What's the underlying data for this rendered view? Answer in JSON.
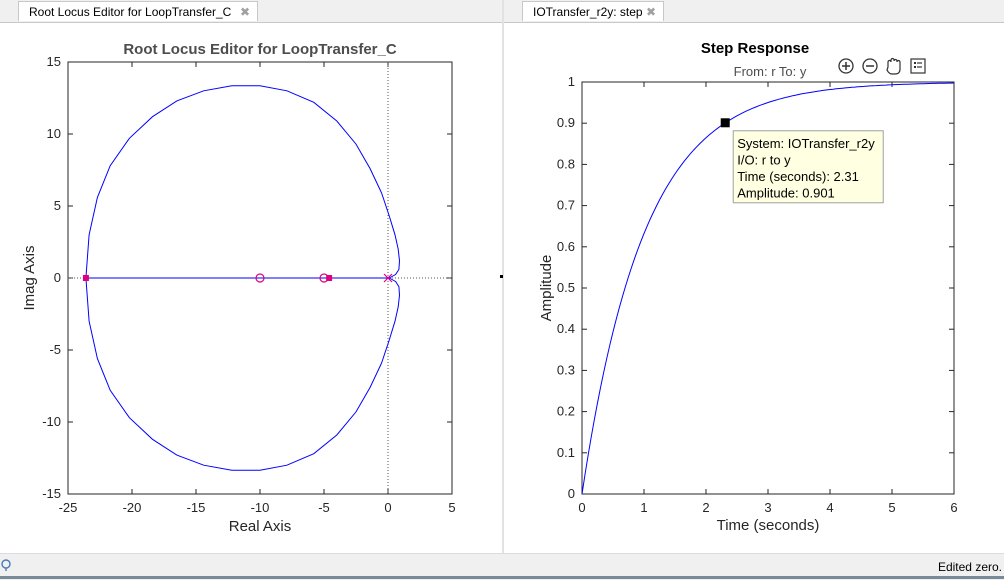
{
  "tabs": {
    "left": {
      "label": "Root Locus Editor for LoopTransfer_C",
      "close": "✖"
    },
    "right": {
      "label": "IOTransfer_r2y: step",
      "close": "✖"
    }
  },
  "status": {
    "text": "Edited zero."
  },
  "colors": {
    "locus": "#0000ff",
    "marker": "#e0007f",
    "datatip_bg": "#ffffe1",
    "axis_text": "#262626"
  },
  "toolbar_icons": [
    "zoom-in-icon",
    "zoom-out-icon",
    "pan-hand-icon",
    "legend-icon"
  ],
  "chart_data": [
    {
      "type": "line",
      "title": "Root Locus Editor for LoopTransfer_C",
      "xlabel": "Real Axis",
      "ylabel": "Imag Axis",
      "xlim": [
        -25,
        5
      ],
      "ylim": [
        -15,
        15
      ],
      "xticks": [
        -25,
        -20,
        -15,
        -10,
        -5,
        0,
        5
      ],
      "yticks": [
        -15,
        -10,
        -5,
        0,
        5,
        10,
        15
      ],
      "grid": false,
      "reference_lines": {
        "x": 0,
        "y": 0,
        "style": "dotted"
      },
      "series": [
        {
          "x": [
            -23.6,
            -23.35,
            -22.7,
            -21.7,
            -20.2,
            -18.4,
            -16.5,
            -14.4,
            -12.2,
            -10.0,
            -7.9,
            -5.8,
            -4.0,
            -2.5,
            -1.4,
            -0.5,
            0.1,
            0.55,
            0.8,
            0.9,
            0.85,
            0.6,
            0.1
          ],
          "y": [
            0,
            3.0,
            5.6,
            7.8,
            9.7,
            11.2,
            12.3,
            13.0,
            13.35,
            13.35,
            13.0,
            12.2,
            10.9,
            9.3,
            7.6,
            5.9,
            4.3,
            3.0,
            2.0,
            1.2,
            0.6,
            0.25,
            0
          ]
        },
        {
          "x": [
            -23.6,
            -23.35,
            -22.7,
            -21.7,
            -20.2,
            -18.4,
            -16.5,
            -14.4,
            -12.2,
            -10.0,
            -7.9,
            -5.8,
            -4.0,
            -2.5,
            -1.4,
            -0.5,
            0.1,
            0.55,
            0.8,
            0.9,
            0.85,
            0.6,
            0.1
          ],
          "y": [
            0,
            -3.0,
            -5.6,
            -7.8,
            -9.7,
            -11.2,
            -12.3,
            -13.0,
            -13.35,
            -13.35,
            -13.0,
            -12.2,
            -10.9,
            -9.3,
            -7.6,
            -5.9,
            -4.3,
            -3.0,
            -2.0,
            -1.2,
            -0.6,
            -0.25,
            0
          ]
        },
        {
          "x": [
            -23.6,
            0
          ],
          "y": [
            0,
            0
          ]
        }
      ],
      "poles": [
        {
          "x": 0,
          "y": 0
        }
      ],
      "zeros": [
        {
          "x": -10,
          "y": 0
        },
        {
          "x": -5,
          "y": 0
        }
      ],
      "closed_loop_poles": [
        {
          "x": -23.6,
          "y": 0
        },
        {
          "x": -4.6,
          "y": 0
        }
      ]
    },
    {
      "type": "line",
      "title": "Step Response",
      "subtitle": "From: r  To: y",
      "xlabel": "Time (seconds)",
      "ylabel": "Amplitude",
      "xlim": [
        0,
        6
      ],
      "ylim": [
        0,
        1
      ],
      "xticks": [
        0,
        1,
        2,
        3,
        4,
        5,
        6
      ],
      "yticks": [
        0,
        0.1,
        0.2,
        0.3,
        0.4,
        0.5,
        0.6,
        0.7,
        0.8,
        0.9,
        1
      ],
      "grid": false,
      "time_constant": 1.0,
      "series": [
        {
          "x": [
            0,
            0.25,
            0.5,
            0.75,
            1.0,
            1.25,
            1.5,
            1.75,
            2.0,
            2.31,
            2.5,
            2.75,
            3.0,
            3.5,
            4.0,
            4.5,
            5.0,
            5.5,
            6.0
          ],
          "y": [
            0,
            0.221,
            0.393,
            0.528,
            0.632,
            0.713,
            0.777,
            0.826,
            0.865,
            0.901,
            0.918,
            0.936,
            0.95,
            0.97,
            0.982,
            0.989,
            0.993,
            0.996,
            0.998
          ]
        }
      ],
      "datatip": {
        "x": 2.31,
        "y": 0.901,
        "lines": [
          "System: IOTransfer_r2y",
          "I/O: r to y",
          "Time (seconds): 2.31",
          "Amplitude: 0.901"
        ]
      }
    }
  ]
}
